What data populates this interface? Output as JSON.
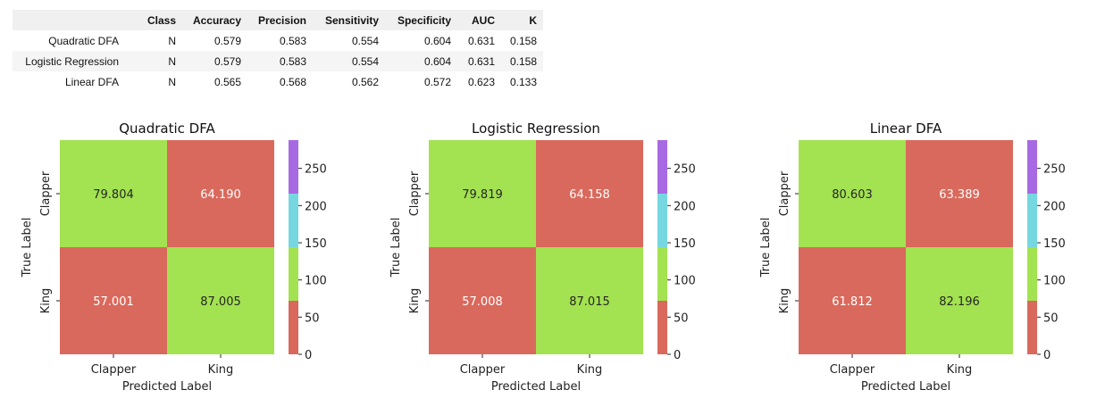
{
  "metrics_table": {
    "columns": [
      "",
      "Class",
      "Accuracy",
      "Precision",
      "Sensitivity",
      "Specificity",
      "AUC",
      "K"
    ],
    "rows": [
      [
        "Quadratic DFA",
        "N",
        "0.579",
        "0.583",
        "0.554",
        "0.604",
        "0.631",
        "0.158"
      ],
      [
        "Logistic Regression",
        "N",
        "0.579",
        "0.583",
        "0.554",
        "0.604",
        "0.631",
        "0.158"
      ],
      [
        "Linear DFA",
        "N",
        "0.565",
        "0.568",
        "0.562",
        "0.572",
        "0.623",
        "0.133"
      ]
    ]
  },
  "chart_data": [
    {
      "type": "heatmap",
      "title": "Quadratic DFA",
      "xlabel": "Predicted Label",
      "ylabel": "True Label",
      "x_categories": [
        "Clapper",
        "King"
      ],
      "y_categories": [
        "Clapper",
        "King"
      ],
      "values": [
        [
          79.804,
          64.19
        ],
        [
          57.001,
          87.005
        ]
      ],
      "labels": [
        [
          "79.804",
          "64.190"
        ],
        [
          "57.001",
          "87.005"
        ]
      ],
      "colorbar": {
        "range": [
          0,
          288
        ],
        "ticks": [
          0,
          50,
          100,
          150,
          200,
          250
        ],
        "bins": [
          {
            "from": 0,
            "to": 72,
            "color": "#d9695c"
          },
          {
            "from": 72,
            "to": 144,
            "color": "#a3e250"
          },
          {
            "from": 144,
            "to": 216,
            "color": "#76d7e0"
          },
          {
            "from": 216,
            "to": 288,
            "color": "#a86ae2"
          }
        ]
      }
    },
    {
      "type": "heatmap",
      "title": "Logistic Regression",
      "xlabel": "Predicted Label",
      "ylabel": "True Label",
      "x_categories": [
        "Clapper",
        "King"
      ],
      "y_categories": [
        "Clapper",
        "King"
      ],
      "values": [
        [
          79.819,
          64.158
        ],
        [
          57.008,
          87.015
        ]
      ],
      "labels": [
        [
          "79.819",
          "64.158"
        ],
        [
          "57.008",
          "87.015"
        ]
      ],
      "colorbar": {
        "range": [
          0,
          288
        ],
        "ticks": [
          0,
          50,
          100,
          150,
          200,
          250
        ],
        "bins": [
          {
            "from": 0,
            "to": 72,
            "color": "#d9695c"
          },
          {
            "from": 72,
            "to": 144,
            "color": "#a3e250"
          },
          {
            "from": 144,
            "to": 216,
            "color": "#76d7e0"
          },
          {
            "from": 216,
            "to": 288,
            "color": "#a86ae2"
          }
        ]
      }
    },
    {
      "type": "heatmap",
      "title": "Linear DFA",
      "xlabel": "Predicted Label",
      "ylabel": "True Label",
      "x_categories": [
        "Clapper",
        "King"
      ],
      "y_categories": [
        "Clapper",
        "King"
      ],
      "values": [
        [
          80.603,
          63.389
        ],
        [
          61.812,
          82.196
        ]
      ],
      "labels": [
        [
          "80.603",
          "63.389"
        ],
        [
          "61.812",
          "82.196"
        ]
      ],
      "colorbar": {
        "range": [
          0,
          288
        ],
        "ticks": [
          0,
          50,
          100,
          150,
          200,
          250
        ],
        "bins": [
          {
            "from": 0,
            "to": 72,
            "color": "#d9695c"
          },
          {
            "from": 72,
            "to": 144,
            "color": "#a3e250"
          },
          {
            "from": 144,
            "to": 216,
            "color": "#76d7e0"
          },
          {
            "from": 216,
            "to": 288,
            "color": "#a86ae2"
          }
        ]
      }
    }
  ]
}
